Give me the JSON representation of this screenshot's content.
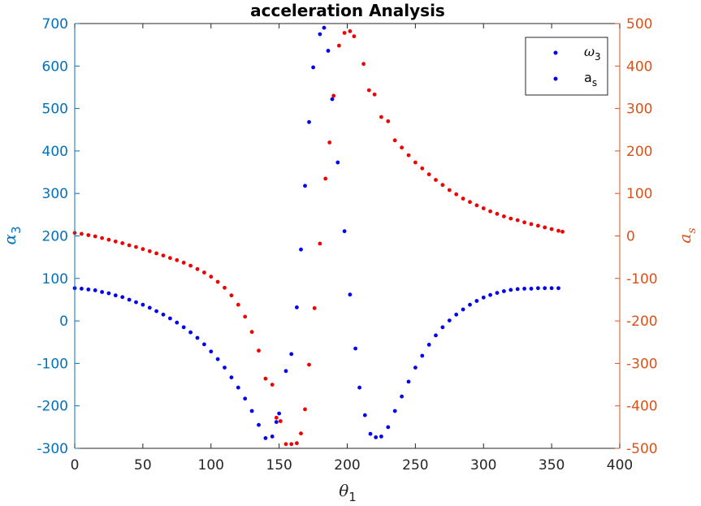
{
  "chart_data": {
    "type": "scatter",
    "title": "acceleration Analysis",
    "xlabel": {
      "main": "θ",
      "sub": "1"
    },
    "ylabel_left": {
      "main": "α",
      "sub": "3"
    },
    "ylabel_right": {
      "main": "a",
      "sub": "s"
    },
    "xlim": [
      0,
      400
    ],
    "ylim_left": [
      -300,
      700
    ],
    "ylim_right": [
      -500,
      500
    ],
    "x_ticks": [
      "0",
      "50",
      "100",
      "150",
      "200",
      "250",
      "300",
      "350",
      "400"
    ],
    "y_left_ticks": [
      "-300",
      "-200",
      "-100",
      "0",
      "100",
      "200",
      "300",
      "400",
      "500",
      "600",
      "700"
    ],
    "y_right_ticks": [
      "-500",
      "-400",
      "-300",
      "-200",
      "-100",
      "0",
      "100",
      "200",
      "300",
      "400",
      "500"
    ],
    "colors": {
      "left_axis": "#0072BD",
      "right_axis": "#D95319",
      "series_omega": "#0000EE",
      "series_as": "#EE0000"
    },
    "legend": {
      "placement": "top-right",
      "entries": [
        {
          "main": "ω",
          "sub": "3"
        },
        {
          "main": "a",
          "sub": "s"
        }
      ]
    },
    "series": [
      {
        "name": "omega3",
        "axis": "left",
        "color": "#0000EE",
        "points": [
          [
            0,
            77
          ],
          [
            5,
            76
          ],
          [
            10,
            74
          ],
          [
            15,
            72
          ],
          [
            20,
            68
          ],
          [
            25,
            65
          ],
          [
            30,
            60
          ],
          [
            35,
            56
          ],
          [
            40,
            50
          ],
          [
            45,
            44
          ],
          [
            50,
            38
          ],
          [
            55,
            31
          ],
          [
            60,
            23
          ],
          [
            65,
            15
          ],
          [
            70,
            6
          ],
          [
            75,
            -4
          ],
          [
            80,
            -15
          ],
          [
            85,
            -27
          ],
          [
            90,
            -40
          ],
          [
            95,
            -55
          ],
          [
            100,
            -72
          ],
          [
            105,
            -90
          ],
          [
            110,
            -110
          ],
          [
            115,
            -133
          ],
          [
            120,
            -157
          ],
          [
            125,
            -183
          ],
          [
            130,
            -212
          ],
          [
            135,
            -245
          ],
          [
            140,
            -276
          ],
          [
            145,
            -272
          ],
          [
            148,
            -238
          ],
          [
            150,
            -218
          ],
          [
            155,
            -118
          ],
          [
            159,
            -78
          ],
          [
            163,
            32
          ],
          [
            166,
            168
          ],
          [
            169,
            318
          ],
          [
            172,
            468
          ],
          [
            175,
            597
          ],
          [
            180,
            675
          ],
          [
            183,
            690
          ],
          [
            186,
            636
          ],
          [
            189,
            522
          ],
          [
            193,
            373
          ],
          [
            198,
            211
          ],
          [
            202,
            62
          ],
          [
            206,
            -65
          ],
          [
            209,
            -157
          ],
          [
            213,
            -222
          ],
          [
            217,
            -266
          ],
          [
            221,
            -274
          ],
          [
            225,
            -272
          ],
          [
            230,
            -250
          ],
          [
            235,
            -212
          ],
          [
            240,
            -178
          ],
          [
            245,
            -143
          ],
          [
            250,
            -110
          ],
          [
            255,
            -82
          ],
          [
            260,
            -56
          ],
          [
            265,
            -34
          ],
          [
            270,
            -15
          ],
          [
            275,
            1
          ],
          [
            280,
            15
          ],
          [
            285,
            27
          ],
          [
            290,
            38
          ],
          [
            295,
            47
          ],
          [
            300,
            55
          ],
          [
            305,
            61
          ],
          [
            310,
            66
          ],
          [
            315,
            70
          ],
          [
            320,
            73
          ],
          [
            325,
            75
          ],
          [
            330,
            76
          ],
          [
            335,
            76
          ],
          [
            340,
            77
          ],
          [
            345,
            77
          ],
          [
            350,
            77
          ],
          [
            355,
            77
          ]
        ]
      },
      {
        "name": "a_s",
        "axis": "right",
        "color": "#EE0000",
        "points": [
          [
            0,
            7
          ],
          [
            5,
            5
          ],
          [
            10,
            2
          ],
          [
            15,
            -1
          ],
          [
            20,
            -5
          ],
          [
            25,
            -9
          ],
          [
            30,
            -13
          ],
          [
            35,
            -17
          ],
          [
            40,
            -22
          ],
          [
            45,
            -26
          ],
          [
            50,
            -31
          ],
          [
            55,
            -36
          ],
          [
            60,
            -41
          ],
          [
            65,
            -46
          ],
          [
            70,
            -52
          ],
          [
            75,
            -57
          ],
          [
            80,
            -63
          ],
          [
            85,
            -70
          ],
          [
            90,
            -78
          ],
          [
            95,
            -86
          ],
          [
            100,
            -96
          ],
          [
            105,
            -108
          ],
          [
            110,
            -122
          ],
          [
            115,
            -140
          ],
          [
            120,
            -162
          ],
          [
            125,
            -190
          ],
          [
            130,
            -226
          ],
          [
            135,
            -270
          ],
          [
            140,
            -336
          ],
          [
            145,
            -350
          ],
          [
            148,
            -428
          ],
          [
            151,
            -436
          ],
          [
            155,
            -490
          ],
          [
            159,
            -490
          ],
          [
            163,
            -488
          ],
          [
            166,
            -465
          ],
          [
            169,
            -408
          ],
          [
            172,
            -303
          ],
          [
            176,
            -170
          ],
          [
            180,
            -18
          ],
          [
            184,
            135
          ],
          [
            187,
            220
          ],
          [
            190,
            330
          ],
          [
            194,
            448
          ],
          [
            198,
            478
          ],
          [
            202,
            482
          ],
          [
            205,
            470
          ],
          [
            212,
            405
          ],
          [
            216,
            343
          ],
          [
            220,
            333
          ],
          [
            225,
            280
          ],
          [
            230,
            270
          ],
          [
            235,
            225
          ],
          [
            240,
            208
          ],
          [
            245,
            190
          ],
          [
            250,
            173
          ],
          [
            255,
            159
          ],
          [
            260,
            145
          ],
          [
            265,
            132
          ],
          [
            270,
            120
          ],
          [
            275,
            108
          ],
          [
            280,
            98
          ],
          [
            285,
            88
          ],
          [
            290,
            80
          ],
          [
            295,
            72
          ],
          [
            300,
            65
          ],
          [
            305,
            58
          ],
          [
            310,
            52
          ],
          [
            315,
            46
          ],
          [
            320,
            41
          ],
          [
            325,
            37
          ],
          [
            330,
            32
          ],
          [
            335,
            28
          ],
          [
            340,
            24
          ],
          [
            345,
            20
          ],
          [
            350,
            16
          ],
          [
            355,
            12
          ],
          [
            358,
            10
          ]
        ]
      }
    ]
  }
}
